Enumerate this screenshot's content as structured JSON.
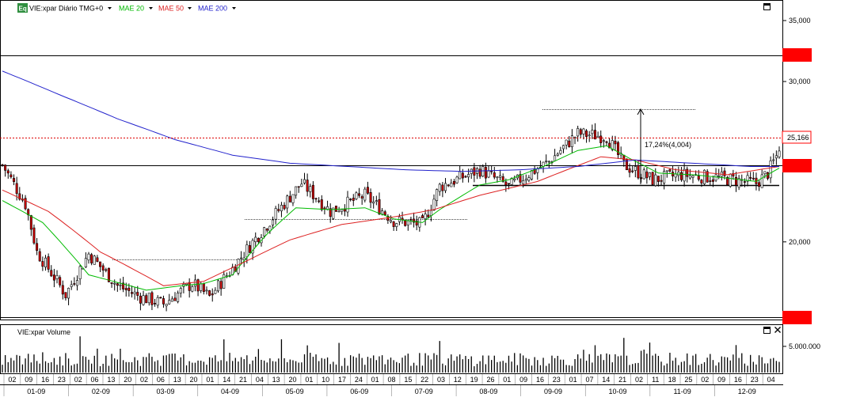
{
  "legend": {
    "badge": "Eq",
    "symbol_label": "VIE:xpar Diário TMG+0",
    "ma_items": [
      {
        "label": "MAE 20",
        "color": "#00bb00"
      },
      {
        "label": "MAE 50",
        "color": "#dd2222"
      },
      {
        "label": "MAE 200",
        "color": "#2222cc"
      }
    ]
  },
  "volume_panel": {
    "title": "VIE:xpar Volume"
  },
  "colors": {
    "candle_up": "#ffffff",
    "candle_down": "#cc0000",
    "candle_outline": "#000000",
    "volume_bar": "#000000",
    "price_marker": "#ff0000",
    "current_line": "#dd0000"
  },
  "chart_data": [
    {
      "type": "candlestick",
      "title": "VIE:xpar Diário TMG+0",
      "scale": "log",
      "ylim": [
        16500,
        36500
      ],
      "y_ticks": [
        20000,
        30000,
        35000
      ],
      "y_tick_labels": [
        "20,000",
        "30,000",
        "35,000"
      ],
      "current_price": 25166,
      "current_price_label": "25,166",
      "x_major_labels": [
        "01-09",
        "02-09",
        "03-09",
        "04-09",
        "05-09",
        "06-09",
        "07-09",
        "08-09",
        "09-09",
        "10-09",
        "11-09",
        "12-09"
      ],
      "x_minor_labels": [
        "02",
        "09",
        "16",
        "23",
        "02",
        "06",
        "13",
        "20",
        "02",
        "06",
        "13",
        "20",
        "01",
        "14",
        "21",
        "04",
        "13",
        "20",
        "01",
        "10",
        "17",
        "24",
        "01",
        "08",
        "15",
        "22",
        "03",
        "12",
        "19",
        "26",
        "01",
        "09",
        "16",
        "23",
        "01",
        "07",
        "14",
        "21",
        "02",
        "11",
        "18",
        "25",
        "02",
        "09",
        "16",
        "23",
        "04"
      ],
      "close_keypoints": [
        [
          0,
          24300
        ],
        [
          8,
          22000
        ],
        [
          12,
          19500
        ],
        [
          22,
          17500
        ],
        [
          30,
          19400
        ],
        [
          40,
          17900
        ],
        [
          48,
          17400
        ],
        [
          56,
          17100
        ],
        [
          66,
          18000
        ],
        [
          72,
          17400
        ],
        [
          80,
          18700
        ],
        [
          92,
          20900
        ],
        [
          104,
          23200
        ],
        [
          114,
          21600
        ],
        [
          126,
          22500
        ],
        [
          136,
          21100
        ],
        [
          146,
          20900
        ],
        [
          152,
          23000
        ],
        [
          166,
          24000
        ],
        [
          176,
          23000
        ],
        [
          190,
          24500
        ],
        [
          200,
          26300
        ],
        [
          210,
          26100
        ],
        [
          216,
          24300
        ],
        [
          226,
          23400
        ],
        [
          236,
          23700
        ],
        [
          250,
          23500
        ],
        [
          262,
          23200
        ],
        [
          266,
          23800
        ],
        [
          270,
          25166
        ]
      ],
      "series": [
        {
          "name": "MAE 20",
          "color": "#00bb00",
          "points": [
            [
              0,
              22200
            ],
            [
              14,
              21000
            ],
            [
              30,
              18400
            ],
            [
              50,
              17700
            ],
            [
              62,
              17900
            ],
            [
              70,
              18000
            ],
            [
              80,
              18400
            ],
            [
              92,
              20400
            ],
            [
              102,
              21800
            ],
            [
              114,
              21700
            ],
            [
              126,
              21800
            ],
            [
              136,
              21200
            ],
            [
              146,
              21000
            ],
            [
              152,
              21700
            ],
            [
              166,
              23100
            ],
            [
              176,
              23400
            ],
            [
              188,
              24200
            ],
            [
              200,
              25200
            ],
            [
              210,
              25500
            ],
            [
              218,
              24700
            ],
            [
              228,
              23800
            ],
            [
              240,
              23700
            ],
            [
              252,
              23500
            ],
            [
              262,
              23300
            ],
            [
              270,
              24100
            ]
          ]
        },
        {
          "name": "MAE 50",
          "color": "#dd2222",
          "points": [
            [
              0,
              22800
            ],
            [
              16,
              21600
            ],
            [
              34,
              19500
            ],
            [
              56,
              17900
            ],
            [
              70,
              18100
            ],
            [
              84,
              19000
            ],
            [
              100,
              20100
            ],
            [
              118,
              20900
            ],
            [
              136,
              21300
            ],
            [
              150,
              21700
            ],
            [
              166,
              22500
            ],
            [
              186,
              23300
            ],
            [
              208,
              24800
            ],
            [
              220,
              24600
            ],
            [
              234,
              24000
            ],
            [
              252,
              23700
            ],
            [
              270,
              24200
            ]
          ]
        },
        {
          "name": "MAE 200",
          "color": "#2222cc",
          "points": [
            [
              0,
              30800
            ],
            [
              20,
              29000
            ],
            [
              40,
              27300
            ],
            [
              60,
              25900
            ],
            [
              80,
              24900
            ],
            [
              100,
              24400
            ],
            [
              120,
              24200
            ],
            [
              140,
              24000
            ],
            [
              160,
              23900
            ],
            [
              180,
              24000
            ],
            [
              200,
              24200
            ],
            [
              220,
              24600
            ],
            [
              240,
              24400
            ],
            [
              260,
              24200
            ],
            [
              270,
              24200
            ]
          ]
        }
      ],
      "annotations": [
        {
          "text": "17,24%(4,004)"
        }
      ]
    },
    {
      "type": "bar",
      "title": "VIE:xpar Volume",
      "y_ticks": [
        5000000
      ],
      "y_tick_labels": [
        "5.000.000"
      ],
      "ylim": [
        0,
        6500000
      ]
    }
  ]
}
